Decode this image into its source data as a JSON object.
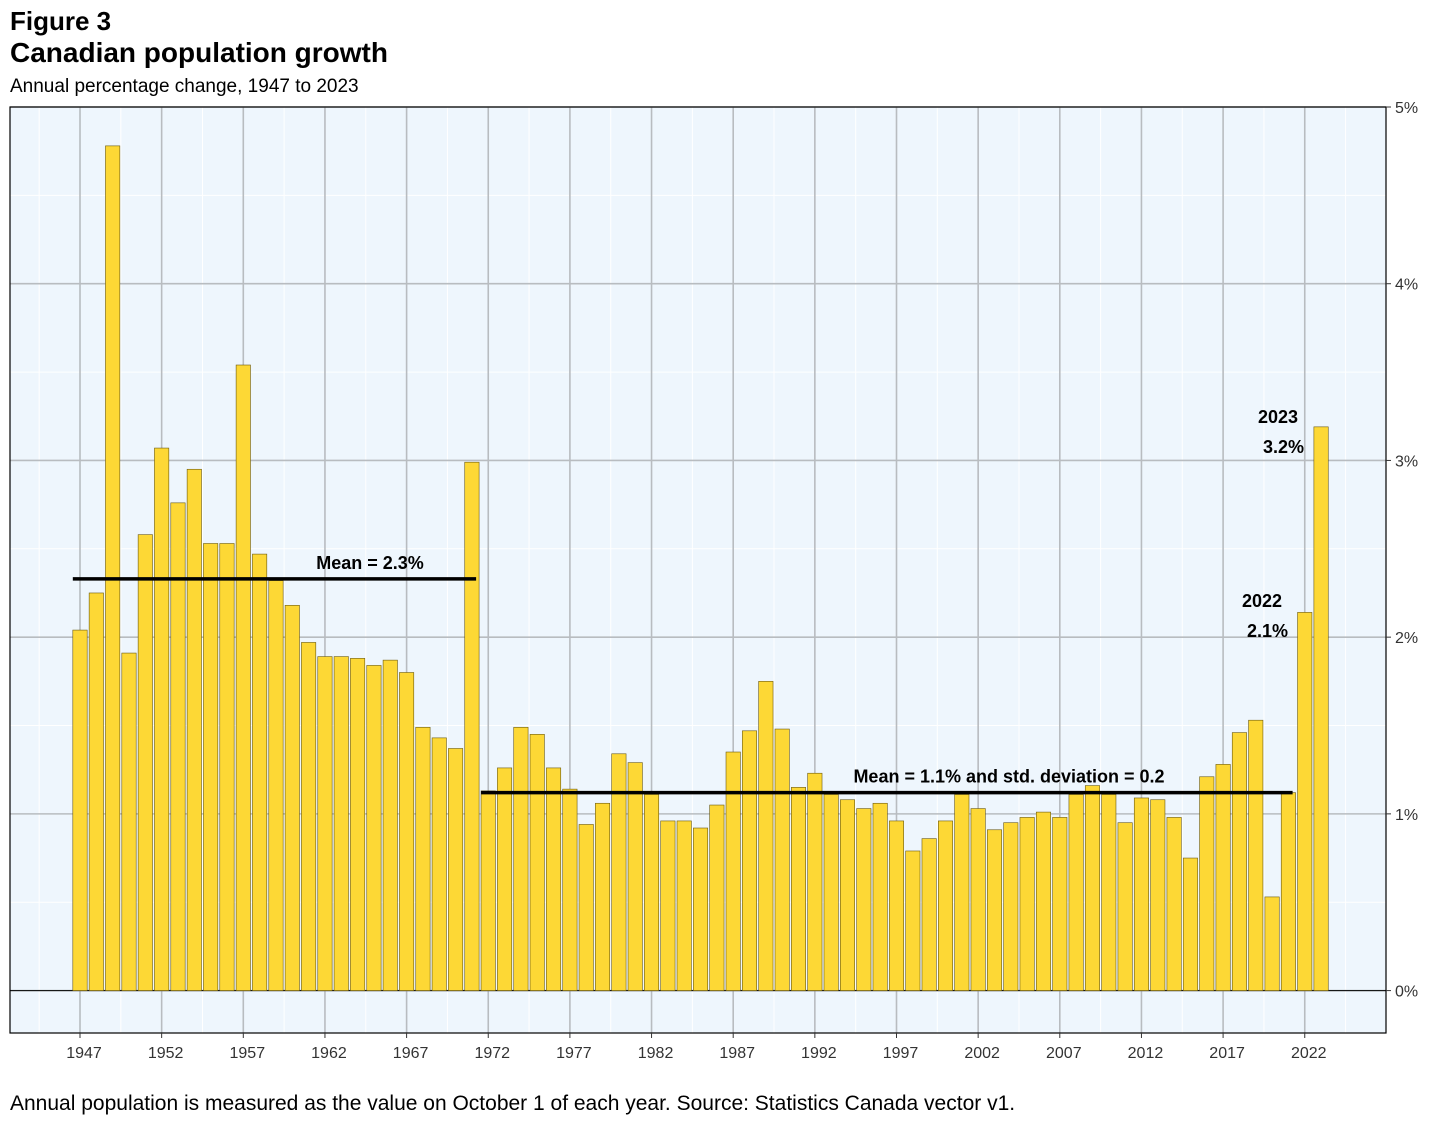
{
  "figure_label": "Figure 3",
  "caption": "Annual population is measured as the value on October 1 of each year. Source: Statistics Canada vector v1.",
  "colors": {
    "bar_fill": "#FDD835",
    "bar_stroke": "#6b5a10",
    "panel_bg": "#EEF6FD",
    "grid_major": "#B8BCC0",
    "grid_minor": "#FFFFFF",
    "mean_line": "#000000"
  },
  "chart_data": {
    "type": "bar",
    "title": "Canadian population growth",
    "subtitle": "Annual percentage change, 1947 to 2023",
    "xlabel": "",
    "ylabel": "",
    "ylim": [
      -0.24,
      5.0
    ],
    "y_ticks": [
      "0%",
      "1%",
      "2%",
      "3%",
      "4%",
      "5%"
    ],
    "y_tick_values": [
      0,
      1,
      2,
      3,
      4,
      5
    ],
    "x_ticks": [
      "1947",
      "1952",
      "1957",
      "1962",
      "1967",
      "1972",
      "1977",
      "1982",
      "1987",
      "1992",
      "1997",
      "2002",
      "2007",
      "2012",
      "2017",
      "2022"
    ],
    "grid": true,
    "y_axis_position": "right",
    "years": [
      1947,
      1948,
      1949,
      1950,
      1951,
      1952,
      1953,
      1954,
      1955,
      1956,
      1957,
      1958,
      1959,
      1960,
      1961,
      1962,
      1963,
      1964,
      1965,
      1966,
      1967,
      1968,
      1969,
      1970,
      1971,
      1972,
      1973,
      1974,
      1975,
      1976,
      1977,
      1978,
      1979,
      1980,
      1981,
      1982,
      1983,
      1984,
      1985,
      1986,
      1987,
      1988,
      1989,
      1990,
      1991,
      1992,
      1993,
      1994,
      1995,
      1996,
      1997,
      1998,
      1999,
      2000,
      2001,
      2002,
      2003,
      2004,
      2005,
      2006,
      2007,
      2008,
      2009,
      2010,
      2011,
      2012,
      2013,
      2014,
      2015,
      2016,
      2017,
      2018,
      2019,
      2020,
      2021,
      2022,
      2023
    ],
    "values": [
      2.04,
      2.25,
      4.78,
      1.91,
      2.58,
      3.07,
      2.76,
      2.95,
      2.53,
      2.53,
      3.54,
      2.47,
      2.32,
      2.18,
      1.97,
      1.89,
      1.89,
      1.88,
      1.84,
      1.87,
      1.8,
      1.49,
      1.43,
      1.37,
      2.99,
      1.13,
      1.26,
      1.49,
      1.45,
      1.26,
      1.14,
      0.94,
      1.06,
      1.34,
      1.29,
      1.11,
      0.96,
      0.96,
      0.92,
      1.05,
      1.35,
      1.47,
      1.75,
      1.48,
      1.15,
      1.23,
      1.11,
      1.08,
      1.03,
      1.06,
      0.96,
      0.79,
      0.86,
      0.96,
      1.11,
      1.03,
      0.91,
      0.95,
      0.98,
      1.01,
      0.98,
      1.11,
      1.16,
      1.11,
      0.95,
      1.09,
      1.08,
      0.98,
      0.75,
      1.21,
      1.28,
      1.46,
      1.53,
      0.53,
      1.12,
      2.14,
      3.19
    ],
    "mean_lines": [
      {
        "label": "Mean = 2.3%",
        "value": 2.33,
        "from_year": 1947,
        "to_year": 1971
      },
      {
        "label": "Mean = 1.1% and std. deviation = 0.2",
        "value": 1.12,
        "from_year": 1972,
        "to_year": 2021
      }
    ],
    "annotations": [
      {
        "year_label": "2023",
        "value_label": "3.2%"
      },
      {
        "year_label": "2022",
        "value_label": "2.1%"
      }
    ]
  }
}
